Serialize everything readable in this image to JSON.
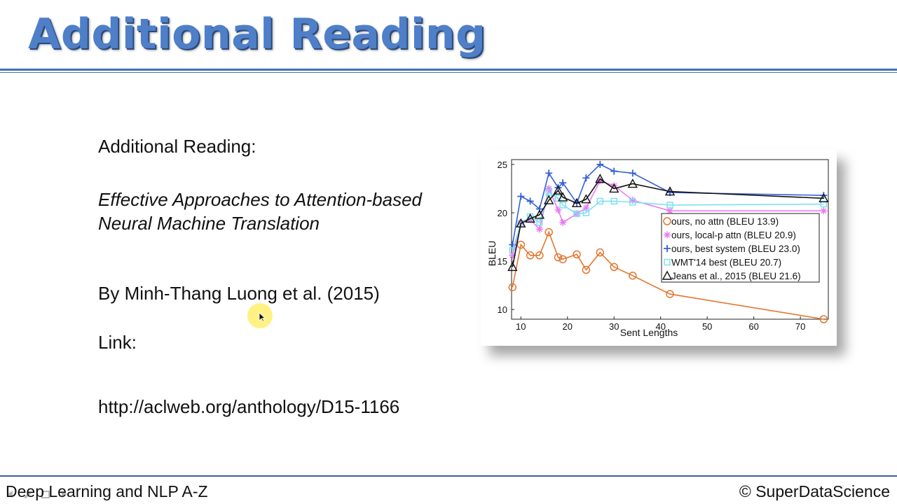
{
  "slide": {
    "title": "Additional Reading"
  },
  "content": {
    "heading": "Additional Reading:",
    "paper_title": "Effective Approaches to Attention-based Neural Machine Translation",
    "authors": "By Minh-Thang Luong et al. (2015)",
    "link_label": "Link:",
    "link_url": "http://aclweb.org/anthology/D15-1166"
  },
  "footer": {
    "course": "Deep Learning and NLP A-Z",
    "copyright": "© SuperDataScience"
  },
  "chart_data": {
    "type": "line",
    "title": "",
    "xlabel": "Sent Lengths",
    "ylabel": "BLEU",
    "xlim": [
      8,
      76
    ],
    "ylim": [
      9,
      25.5
    ],
    "xticks": [
      10,
      20,
      30,
      40,
      50,
      60,
      70
    ],
    "yticks": [
      10,
      15,
      20,
      25
    ],
    "legend_position": "inside-right",
    "series": [
      {
        "name": "ours, no attn (BLEU 13.9)",
        "color": "#e3772f",
        "marker": "circle",
        "points": [
          [
            8.2,
            12.3
          ],
          [
            10,
            16.7
          ],
          [
            12,
            15.6
          ],
          [
            14,
            15.6
          ],
          [
            16,
            18.0
          ],
          [
            18,
            15.4
          ],
          [
            19,
            15.2
          ],
          [
            22,
            15.7
          ],
          [
            24,
            14.1
          ],
          [
            27,
            15.9
          ],
          [
            30,
            14.4
          ],
          [
            34,
            13.5
          ],
          [
            42,
            11.6
          ],
          [
            75,
            9.0
          ]
        ]
      },
      {
        "name": "ours, local-p attn (BLEU 20.9)",
        "color": "#ea7cf2",
        "marker": "asterisk",
        "points": [
          [
            8.2,
            15.6
          ],
          [
            10,
            19.0
          ],
          [
            12,
            19.3
          ],
          [
            14,
            18.3
          ],
          [
            16,
            22.5
          ],
          [
            18,
            20.3
          ],
          [
            19,
            19.0
          ],
          [
            22,
            19.9
          ],
          [
            24,
            20.5
          ],
          [
            27,
            23.3
          ],
          [
            30,
            22.8
          ],
          [
            34,
            21.3
          ],
          [
            42,
            20.2
          ],
          [
            75,
            20.2
          ]
        ]
      },
      {
        "name": "ours, best system (BLEU 23.0)",
        "color": "#3560d8",
        "marker": "plus",
        "points": [
          [
            8.2,
            16.7
          ],
          [
            10,
            21.7
          ],
          [
            12,
            21.2
          ],
          [
            14,
            20.4
          ],
          [
            16,
            24.1
          ],
          [
            18,
            22.6
          ],
          [
            19,
            23.1
          ],
          [
            22,
            21.0
          ],
          [
            24,
            23.6
          ],
          [
            27,
            25.0
          ],
          [
            30,
            24.3
          ],
          [
            34,
            24.1
          ],
          [
            42,
            22.1
          ],
          [
            75,
            21.8
          ]
        ]
      },
      {
        "name": "WMT'14 best (BLEU 20.7)",
        "color": "#7ee0f2",
        "marker": "square",
        "points": [
          [
            8.2,
            16.1
          ],
          [
            10,
            18.9
          ],
          [
            12,
            19.6
          ],
          [
            14,
            19.0
          ],
          [
            16,
            22.1
          ],
          [
            18,
            21.5
          ],
          [
            19,
            20.8
          ],
          [
            22,
            19.9
          ],
          [
            24,
            20.0
          ],
          [
            27,
            21.2
          ],
          [
            30,
            21.2
          ],
          [
            34,
            21.1
          ],
          [
            42,
            20.8
          ],
          [
            75,
            20.9
          ]
        ]
      },
      {
        "name": "Jeans et al., 2015 (BLEU 21.6)",
        "color": "#111111",
        "marker": "triangle",
        "points": [
          [
            8.2,
            14.4
          ],
          [
            10,
            18.9
          ],
          [
            12,
            19.4
          ],
          [
            14,
            19.8
          ],
          [
            16,
            21.3
          ],
          [
            18,
            22.3
          ],
          [
            19,
            21.6
          ],
          [
            22,
            21.0
          ],
          [
            24,
            21.4
          ],
          [
            27,
            23.5
          ],
          [
            30,
            22.5
          ],
          [
            34,
            23.0
          ],
          [
            42,
            22.2
          ],
          [
            75,
            21.5
          ]
        ]
      }
    ]
  }
}
